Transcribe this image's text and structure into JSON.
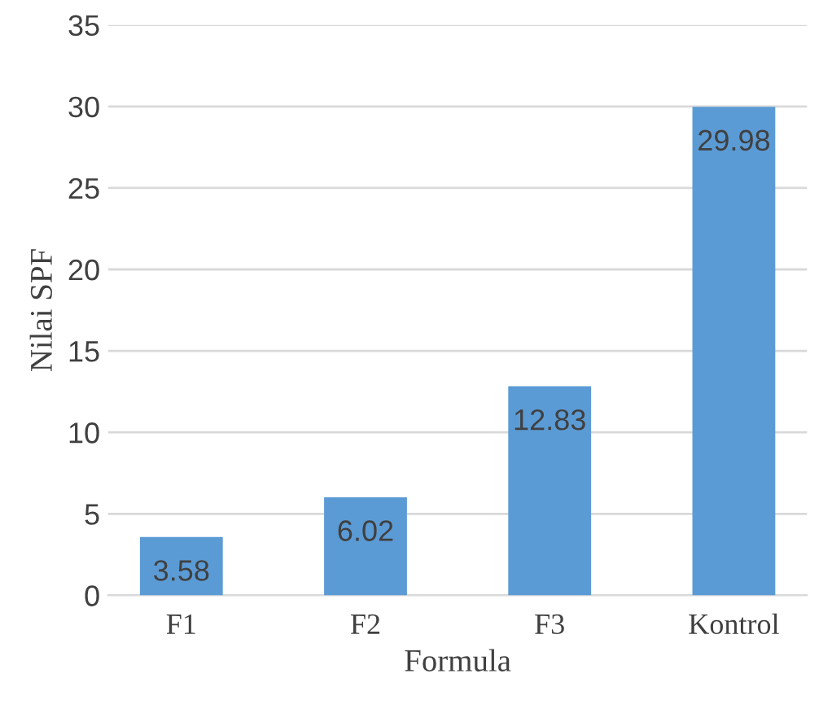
{
  "chart_data": {
    "type": "bar",
    "xlabel": "Formula",
    "ylabel": "Nilai SPF",
    "categories": [
      "F1",
      "F2",
      "F3",
      "Kontrol"
    ],
    "values": [
      3.58,
      6.02,
      12.83,
      29.98
    ],
    "color": "#5b9bd5",
    "ylim": [
      0,
      35
    ],
    "yticks": [
      0,
      5,
      10,
      15,
      20,
      25,
      30,
      35
    ],
    "grid": "y",
    "data_labels": true
  }
}
